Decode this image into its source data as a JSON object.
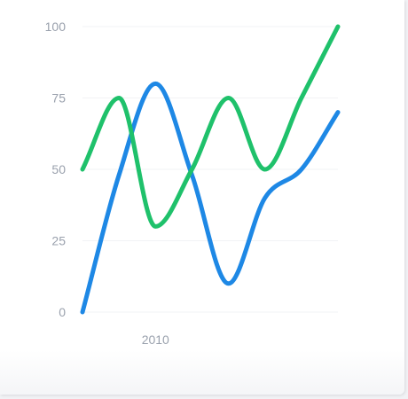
{
  "chart_data": {
    "type": "line",
    "title": "",
    "xlabel": "",
    "ylabel": "",
    "x": [
      2008,
      2009,
      2010,
      2011,
      2012,
      2013,
      2014,
      2015
    ],
    "xticks": [
      {
        "value": 2010,
        "label": "2010"
      }
    ],
    "yticks": [
      0,
      25,
      50,
      75,
      100
    ],
    "ylim": [
      0,
      100
    ],
    "grid": true,
    "series": [
      {
        "color": "#1e88e5",
        "values": [
          0,
          48,
          80,
          48,
          10,
          40,
          50,
          70
        ]
      },
      {
        "color": "#1fc16b",
        "values": [
          50,
          75,
          30,
          50,
          75,
          50,
          75,
          100
        ]
      }
    ]
  }
}
